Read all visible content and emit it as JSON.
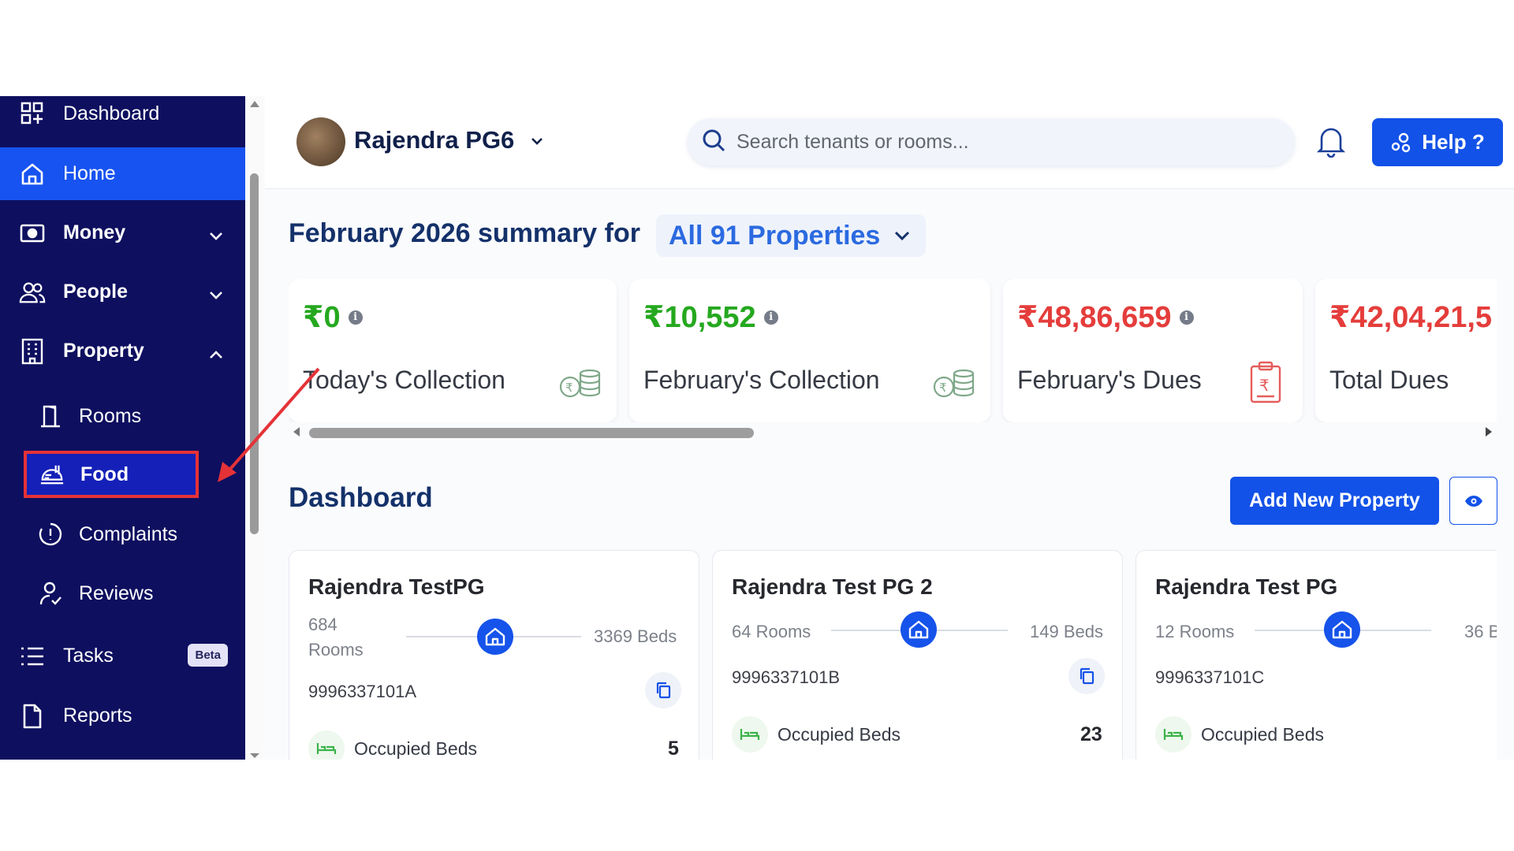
{
  "sidebar": {
    "items": [
      {
        "label": "Dashboard"
      },
      {
        "label": "Home"
      },
      {
        "label": "Money"
      },
      {
        "label": "People"
      },
      {
        "label": "Property"
      },
      {
        "label": "Tasks",
        "badge": "Beta"
      },
      {
        "label": "Reports"
      }
    ],
    "sub_items": [
      {
        "label": "Rooms"
      },
      {
        "label": "Food"
      },
      {
        "label": "Complaints"
      },
      {
        "label": "Reviews"
      }
    ]
  },
  "header": {
    "pg_name": "Rajendra PG6",
    "search_placeholder": "Search tenants or rooms...",
    "help_label": "Help ?"
  },
  "summary": {
    "title": "February 2026 summary for",
    "property_select": "All 91 Properties",
    "cards": [
      {
        "value": "₹0",
        "label": "Today's Collection",
        "color": "#25a81f"
      },
      {
        "value": "₹10,552",
        "label": "February's Collection",
        "color": "#25a81f"
      },
      {
        "value": "₹48,86,659",
        "label": "February's Dues",
        "color": "#e43d3b"
      },
      {
        "value": "₹42,04,21,5",
        "label": "Total Dues",
        "color": "#e43d3b"
      }
    ]
  },
  "dashboard": {
    "title": "Dashboard",
    "add_label": "Add New Property",
    "properties": [
      {
        "name": "Rajendra TestPG",
        "rooms": "684 Rooms",
        "beds": "3369 Beds",
        "phone": "9996337101A",
        "occupied_label": "Occupied Beds",
        "occupied": "5"
      },
      {
        "name": "Rajendra Test PG 2",
        "rooms": "64 Rooms",
        "beds": "149 Beds",
        "phone": "9996337101B",
        "occupied_label": "Occupied Beds",
        "occupied": "23"
      },
      {
        "name": "Rajendra Test PG",
        "rooms": "12 Rooms",
        "beds": "36 B",
        "phone": "9996337101C",
        "occupied_label": "Occupied Beds",
        "occupied": ""
      }
    ]
  },
  "colors": {
    "sidebar": "#0e0f5f",
    "active": "#1753f0",
    "primary": "#1352e8",
    "highlight": "#e53237"
  }
}
